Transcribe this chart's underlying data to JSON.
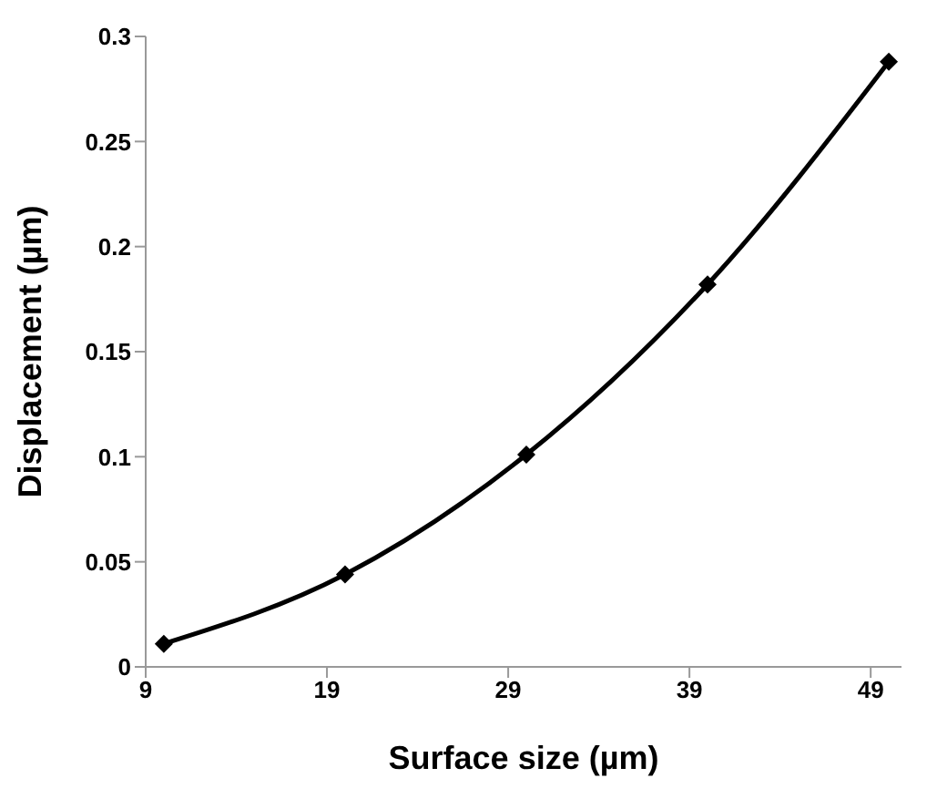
{
  "chart_data": {
    "type": "line",
    "xlabel": "Surface size (µm)",
    "ylabel": "Displacement (µm)",
    "x": [
      10,
      20,
      30,
      40,
      50
    ],
    "series": [
      {
        "color": "#000000",
        "values": [
          0.011,
          0.044,
          0.101,
          0.182,
          0.288
        ]
      }
    ],
    "xlim": [
      9,
      50.7
    ],
    "xticks": [
      9,
      19,
      29,
      39,
      49
    ],
    "ylim": [
      0,
      0.3
    ],
    "yticks": [
      0,
      0.05,
      0.1,
      0.15,
      0.2,
      0.25,
      0.3
    ],
    "grid": false,
    "legend": false,
    "marker": "diamond",
    "line_style": "solid"
  }
}
